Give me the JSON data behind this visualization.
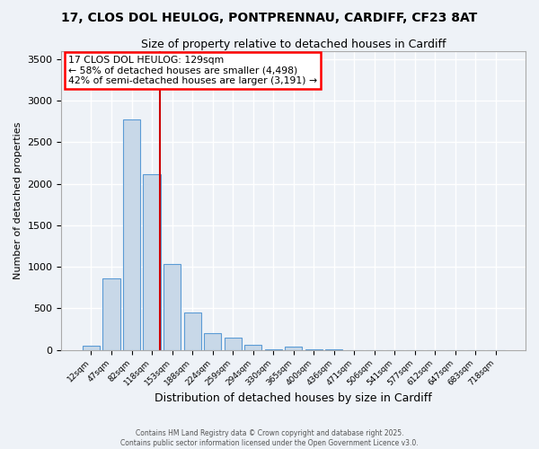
{
  "title1": "17, CLOS DOL HEULOG, PONTPRENNAU, CARDIFF, CF23 8AT",
  "title2": "Size of property relative to detached houses in Cardiff",
  "xlabel": "Distribution of detached houses by size in Cardiff",
  "ylabel": "Number of detached properties",
  "bar_labels": [
    "12sqm",
    "47sqm",
    "82sqm",
    "118sqm",
    "153sqm",
    "188sqm",
    "224sqm",
    "259sqm",
    "294sqm",
    "330sqm",
    "365sqm",
    "400sqm",
    "436sqm",
    "471sqm",
    "506sqm",
    "541sqm",
    "577sqm",
    "612sqm",
    "647sqm",
    "683sqm",
    "718sqm"
  ],
  "bar_values": [
    55,
    860,
    2780,
    2110,
    1035,
    455,
    205,
    145,
    65,
    10,
    35,
    10,
    5,
    0,
    0,
    0,
    0,
    0,
    0,
    0,
    0
  ],
  "bar_color": "#c8d8e8",
  "bar_edge_color": "#5b9bd5",
  "property_line_label": "17 CLOS DOL HEULOG: 129sqm",
  "annotation_line2": "← 58% of detached houses are smaller (4,498)",
  "annotation_line3": "42% of semi-detached houses are larger (3,191) →",
  "vline_color": "#cc0000",
  "vline_x": 3.42,
  "ylim": [
    0,
    3600
  ],
  "yticks": [
    0,
    500,
    1000,
    1500,
    2000,
    2500,
    3000,
    3500
  ],
  "footer1": "Contains HM Land Registry data © Crown copyright and database right 2025.",
  "footer2": "Contains public sector information licensed under the Open Government Licence v3.0.",
  "background_color": "#eef2f7",
  "grid_color": "#ffffff",
  "title1_fontsize": 10,
  "title2_fontsize": 9,
  "ylabel_fontsize": 8,
  "xlabel_fontsize": 9
}
